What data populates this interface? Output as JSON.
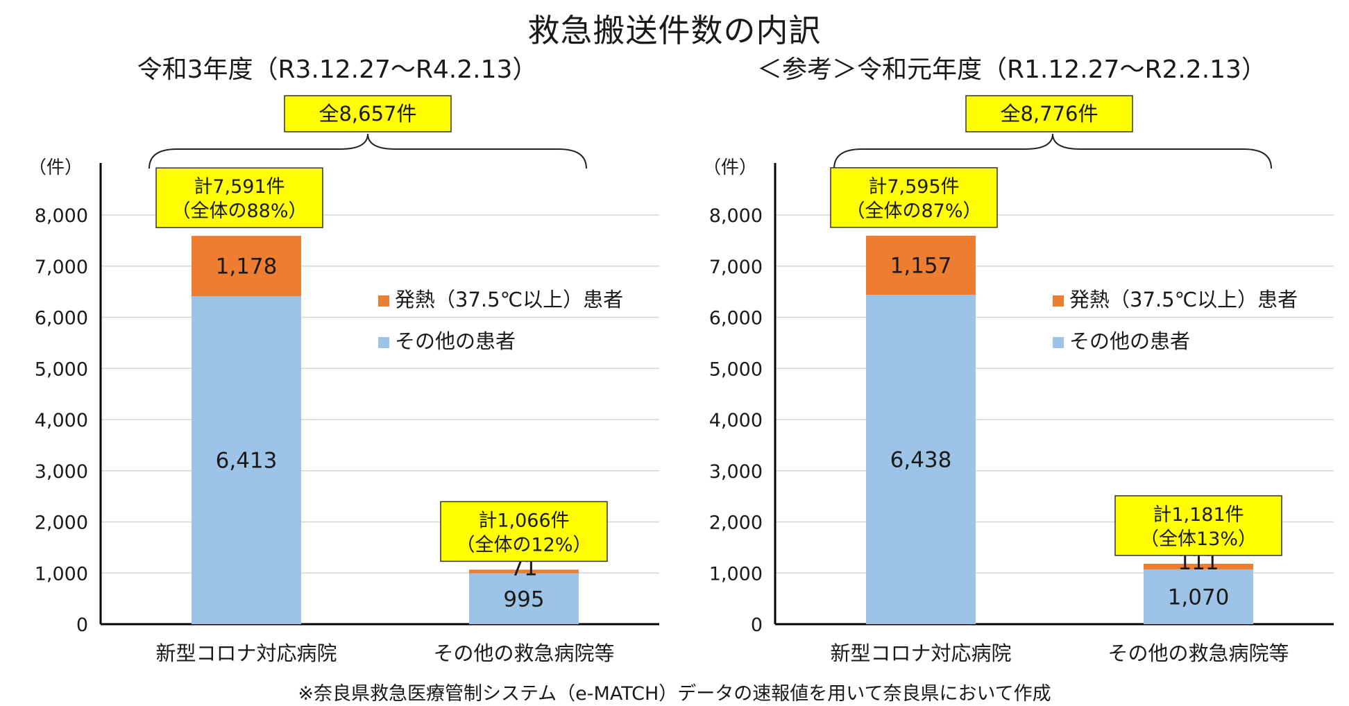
{
  "title": "救急搬送件数の内訳",
  "footnote": "※奈良県救急医療管制システム（e-MATCH）データの速報値を用いて奈良県において作成",
  "colors": {
    "fever": "#ED7D31",
    "other": "#9DC3E6",
    "callout": "#FFFF00"
  },
  "chart_data": [
    {
      "type": "bar",
      "stacked": true,
      "subtitle": "令和3年度（R3.12.27～R4.2.13）",
      "total_label": "全8,657件",
      "ylabel": "（件）",
      "ylim": [
        0,
        8000
      ],
      "yticks": [
        "0",
        "1,000",
        "2,000",
        "3,000",
        "4,000",
        "5,000",
        "6,000",
        "7,000",
        "8,000"
      ],
      "grid": true,
      "legend_position": "right",
      "categories": [
        "新型コロナ対応病院",
        "その他の救急病院等"
      ],
      "series": [
        {
          "name": "その他の患者",
          "color_key": "other",
          "values": [
            6413,
            995
          ],
          "labels": [
            "6,413",
            "995"
          ]
        },
        {
          "name": "発熱（37.5℃以上）患者",
          "color_key": "fever",
          "values": [
            1178,
            71
          ],
          "labels": [
            "1,178",
            "71"
          ]
        }
      ],
      "callouts": [
        {
          "line1": "計7,591件",
          "line2": "（全体の88%）"
        },
        {
          "line1": "計1,066件",
          "line2": "（全体の12%）"
        }
      ]
    },
    {
      "type": "bar",
      "stacked": true,
      "subtitle": "＜参考＞令和元年度（R1.12.27～R2.2.13）",
      "total_label": "全8,776件",
      "ylabel": "（件）",
      "ylim": [
        0,
        8000
      ],
      "yticks": [
        "0",
        "1,000",
        "2,000",
        "3,000",
        "4,000",
        "5,000",
        "6,000",
        "7,000",
        "8,000"
      ],
      "grid": true,
      "legend_position": "right",
      "categories": [
        "新型コロナ対応病院",
        "その他の救急病院等"
      ],
      "series": [
        {
          "name": "その他の患者",
          "color_key": "other",
          "values": [
            6438,
            1070
          ],
          "labels": [
            "6,438",
            "1,070"
          ]
        },
        {
          "name": "発熱（37.5℃以上）患者",
          "color_key": "fever",
          "values": [
            1157,
            111
          ],
          "labels": [
            "1,157",
            "111"
          ]
        }
      ],
      "callouts": [
        {
          "line1": "計7,595件",
          "line2": "（全体の87%）"
        },
        {
          "line1": "計1,181件",
          "line2": "（全体13%）"
        }
      ]
    }
  ]
}
